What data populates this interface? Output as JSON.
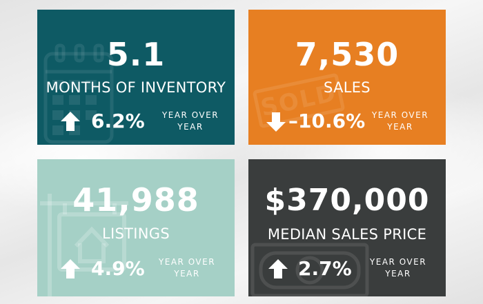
{
  "cards": [
    {
      "value": "5.1",
      "label": "MONTHS OF INVENTORY",
      "change": "6.2%",
      "direction": "up",
      "period_line1": "YEAR OVER",
      "period_line2": "YEAR",
      "bg_color": "#0e5a64",
      "bg_icon": "calendar-icon"
    },
    {
      "value": "7,530",
      "label": "SALES",
      "change": "–10.6%",
      "direction": "down",
      "period_line1": "YEAR OVER",
      "period_line2": "YEAR",
      "bg_color": "#e77f22",
      "bg_icon": "sold-stamp-icon",
      "bg_icon_text": "SOLD"
    },
    {
      "value": "41,988",
      "label": "LISTINGS",
      "change": "4.9%",
      "direction": "up",
      "period_line1": "YEAR OVER",
      "period_line2": "YEAR",
      "bg_color": "#a5d0c6",
      "bg_icon": "house-sign-icon"
    },
    {
      "value": "$370,000",
      "label": "MEDIAN SALES PRICE",
      "change": "2.7%",
      "direction": "up",
      "period_line1": "YEAR OVER",
      "period_line2": "YEAR",
      "bg_color": "#3a3d3d",
      "bg_icon": "money-icon"
    }
  ]
}
